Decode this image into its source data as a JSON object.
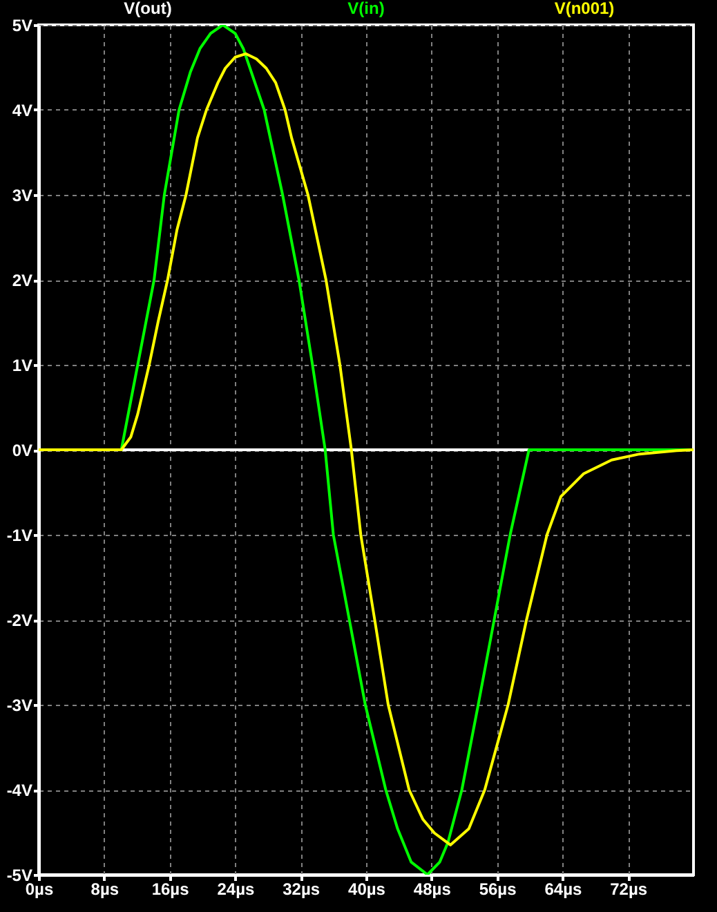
{
  "chart_data": {
    "type": "line",
    "xlim": [
      0,
      80
    ],
    "ylim": [
      -5,
      5
    ],
    "xticks": [
      {
        "value": 0,
        "label": "0µs"
      },
      {
        "value": 8,
        "label": "8µs"
      },
      {
        "value": 16,
        "label": "16µs"
      },
      {
        "value": 24,
        "label": "24µs"
      },
      {
        "value": 32,
        "label": "32µs"
      },
      {
        "value": 40,
        "label": "40µs"
      },
      {
        "value": 48,
        "label": "48µs"
      },
      {
        "value": 56,
        "label": "56µs"
      },
      {
        "value": 64,
        "label": "64µs"
      },
      {
        "value": 72,
        "label": "72µs"
      }
    ],
    "yticks": [
      {
        "value": -5,
        "label": "-5V"
      },
      {
        "value": -4,
        "label": "-4V"
      },
      {
        "value": -3,
        "label": "-3V"
      },
      {
        "value": -2,
        "label": "-2V"
      },
      {
        "value": -1,
        "label": "-1V"
      },
      {
        "value": 0,
        "label": "0V"
      },
      {
        "value": 1,
        "label": "1V"
      },
      {
        "value": 2,
        "label": "2V"
      },
      {
        "value": 3,
        "label": "3V"
      },
      {
        "value": 4,
        "label": "4V"
      },
      {
        "value": 5,
        "label": "5V"
      }
    ],
    "grid": true,
    "legend": "top",
    "marker": "none",
    "line_style": "solid",
    "series": [
      {
        "name": "V(out)",
        "color": "#ffffff",
        "x": [
          0,
          80
        ],
        "values": [
          0,
          0
        ]
      },
      {
        "name": "V(in)",
        "color": "#00ff00",
        "x": [
          0,
          10.1,
          12.1,
          14.1,
          15.35,
          17.15,
          18.55,
          19.7,
          21.0,
          22.5,
          24.0,
          25.0,
          27.55,
          29.8,
          31.8,
          33.45,
          35.0,
          36.0,
          37.95,
          39.9,
          42.4,
          43.85,
          45.5,
          47.5,
          49.0,
          50.0,
          51.7,
          53.7,
          55.65,
          57.6,
          59.9,
          80
        ],
        "values": [
          0,
          0,
          1,
          2,
          3,
          4,
          4.45,
          4.72,
          4.9,
          5,
          4.9,
          4.72,
          4,
          3,
          2,
          1,
          0,
          -1,
          -2,
          -3,
          -4,
          -4.46,
          -4.85,
          -5,
          -4.85,
          -4.62,
          -4,
          -3,
          -2,
          -1,
          0,
          0
        ]
      },
      {
        "name": "V(n001)",
        "color": "#ffff00",
        "x": [
          0,
          10.1,
          11.25,
          12.1,
          13.5,
          14.6,
          15.75,
          16.9,
          18.0,
          19.4,
          20.5,
          21.9,
          22.8,
          24.0,
          25.3,
          26.6,
          27.8,
          28.95,
          30.1,
          30.9,
          32.9,
          35.1,
          36.8,
          38.2,
          39.35,
          41.05,
          42.7,
          45.25,
          46.95,
          48.35,
          50.3,
          52.55,
          54.5,
          57.35,
          59.6,
          62.1,
          63.8,
          66.6,
          70.0,
          73.4,
          77.9,
          80
        ],
        "values": [
          0,
          0,
          0.15,
          0.42,
          1,
          1.51,
          2,
          2.59,
          3,
          3.67,
          4,
          4.32,
          4.49,
          4.62,
          4.66,
          4.6,
          4.49,
          4.32,
          4,
          3.67,
          3,
          2,
          1,
          0,
          -1,
          -2,
          -3,
          -4,
          -4.35,
          -4.51,
          -4.65,
          -4.46,
          -4,
          -3,
          -2,
          -1,
          -0.55,
          -0.28,
          -0.12,
          -0.05,
          -0.01,
          0
        ]
      }
    ]
  }
}
